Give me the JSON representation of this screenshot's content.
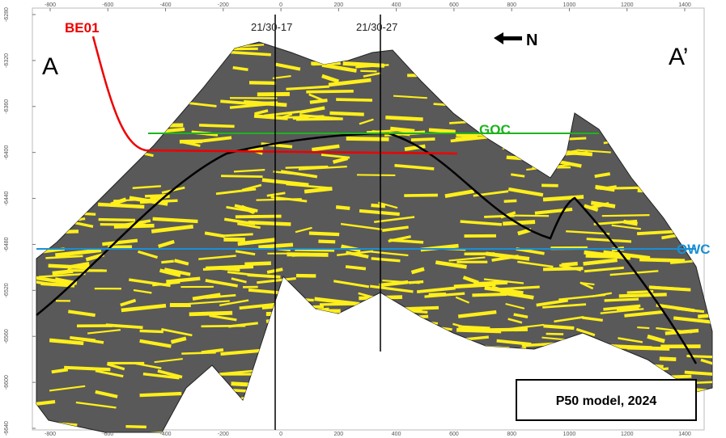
{
  "axes": {
    "x_ticks": [
      -800,
      -600,
      -400,
      -200,
      0,
      200,
      400,
      600,
      800,
      1000,
      1200,
      1400
    ],
    "y_ticks": [
      -6280,
      -6320,
      -6360,
      -6400,
      -6440,
      -6480,
      -6520,
      -6560,
      -6600,
      -6640
    ]
  },
  "labels": {
    "well_name": "BE01",
    "well_1": "21/30-17",
    "well_2": "21/30-27",
    "north": "N",
    "section_start": "A",
    "section_end": "A’",
    "goc": "GOC",
    "owc": "OWC",
    "model": "P50 model, 2024"
  }
}
